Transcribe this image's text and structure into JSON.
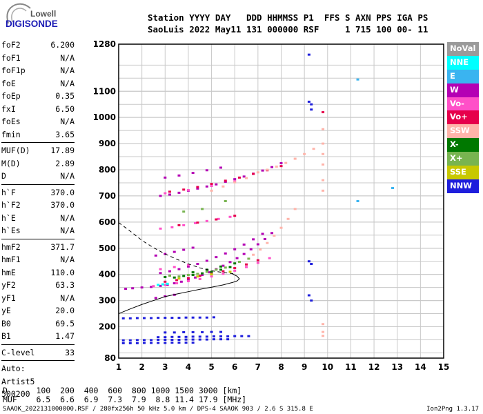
{
  "logo": {
    "line1": "Lowell",
    "line2": "DIGISONDE"
  },
  "header": {
    "line1": "Station YYYY DAY   DDD HHMMSS P1  FFS S AXN PPS IGA PS",
    "line2": "SaoLuis 2022 May11 131 000000 RSF     1 715 100 00- 11"
  },
  "params": {
    "groups": [
      [
        {
          "name": "foF2",
          "value": "6.200"
        },
        {
          "name": "foF1",
          "value": "N/A"
        },
        {
          "name": "foF1p",
          "value": "N/A"
        },
        {
          "name": "foE",
          "value": "N/A"
        },
        {
          "name": "foEp",
          "value": "0.35"
        },
        {
          "name": "fxI",
          "value": "6.50"
        },
        {
          "name": "foEs",
          "value": "N/A"
        },
        {
          "name": "fmin",
          "value": "3.65"
        }
      ],
      [
        {
          "name": "MUF(D)",
          "value": "17.89"
        },
        {
          "name": "M(D)",
          "value": "2.89"
        },
        {
          "name": "D",
          "value": "N/A"
        }
      ],
      [
        {
          "name": "h`F",
          "value": "370.0"
        },
        {
          "name": "h`F2",
          "value": "370.0"
        },
        {
          "name": "h`E",
          "value": "N/A"
        },
        {
          "name": "h`Es",
          "value": "N/A"
        }
      ],
      [
        {
          "name": "hmF2",
          "value": "371.7"
        },
        {
          "name": "hmF1",
          "value": "N/A"
        },
        {
          "name": "hmE",
          "value": "110.0"
        },
        {
          "name": "yF2",
          "value": "63.3"
        },
        {
          "name": "yF1",
          "value": "N/A"
        },
        {
          "name": "yE",
          "value": "20.0"
        },
        {
          "name": "B0",
          "value": "69.5"
        },
        {
          "name": "B1",
          "value": "1.47"
        }
      ],
      [
        {
          "name": "C-level",
          "value": "33"
        }
      ]
    ],
    "auto": [
      "Auto:",
      "Artist5",
      "500200"
    ]
  },
  "legend": [
    {
      "label": "NoVal",
      "color": "#9a9a9a"
    },
    {
      "label": "NNE",
      "color": "#00ffff"
    },
    {
      "label": "E",
      "color": "#3ab4f0"
    },
    {
      "label": "W",
      "color": "#b400b4"
    },
    {
      "label": "Vo-",
      "color": "#ff50c8"
    },
    {
      "label": "Vo+",
      "color": "#e6004b"
    },
    {
      "label": "SSW",
      "color": "#ffb4aa"
    },
    {
      "label": "X-",
      "color": "#007800"
    },
    {
      "label": "X+",
      "color": "#78b450"
    },
    {
      "label": "SSE",
      "color": "#c8c800"
    },
    {
      "label": "NNW",
      "color": "#1e1edc"
    }
  ],
  "muf_table": {
    "d_row": "D      100  200  400  600  800 1000 1500 3000 [km]",
    "muf_row": "MUF    6.5  6.6  6.9  7.3  7.9  8.8 11.4 17.9 [MHz]"
  },
  "footer": "SAAOK_2022131000000.RSF / 280fx256h 50 kHz 5.0 km / DPS-4 SAAOK 903 / 2.6 S 315.8 E",
  "version": "Ion2Png 1.3.17",
  "chart_data": {
    "type": "scatter",
    "xlim": [
      1,
      15
    ],
    "ylim": [
      80,
      1280
    ],
    "x_ticks": [
      1,
      2,
      3,
      4,
      5,
      6,
      7,
      8,
      9,
      10,
      11,
      12,
      13,
      14,
      15
    ],
    "y_ticks": [
      80,
      200,
      300,
      400,
      500,
      600,
      700,
      800,
      900,
      1000,
      1100,
      1280
    ],
    "grid": true,
    "profile_solid": {
      "x": [
        1.0,
        1.5,
        2.0,
        2.5,
        3.0,
        3.5,
        4.0,
        4.5,
        5.0,
        5.5,
        5.9,
        6.1,
        6.2,
        6.1,
        5.9
      ],
      "y": [
        250,
        268,
        285,
        300,
        315,
        325,
        334,
        343,
        351,
        360,
        369,
        375,
        383,
        393,
        402
      ]
    },
    "profile_dashed": {
      "x": [
        1.0,
        1.5,
        2.0,
        2.5,
        3.0,
        3.5,
        4.0,
        4.5,
        5.0,
        5.5,
        6.0
      ],
      "y": [
        598,
        565,
        530,
        502,
        478,
        458,
        440,
        425,
        414,
        407,
        402
      ]
    },
    "series": [
      {
        "legend": "W",
        "x": [
          1.3,
          1.6,
          2.0,
          2.4,
          2.8,
          3.1,
          3.4,
          3.7,
          4.0,
          4.3,
          4.6,
          4.9,
          5.2,
          5.5,
          5.8,
          6.1,
          6.4,
          6.7,
          7.0,
          7.3,
          7.6,
          2.8,
          3.2,
          3.6,
          4.0,
          4.4,
          4.8,
          5.2,
          5.6,
          6.0,
          6.4,
          6.8,
          7.2,
          2.6,
          3.0,
          3.4,
          3.8,
          4.2,
          2.8,
          3.2,
          3.6,
          4.0,
          4.4,
          4.8,
          5.2,
          5.6,
          6.0,
          6.4,
          6.8,
          7.2,
          7.6,
          8.0,
          3.0,
          3.6,
          4.2,
          4.8,
          5.4,
          2.6,
          3.0,
          3.4
        ],
        "y": [
          345,
          347,
          350,
          352,
          356,
          360,
          366,
          372,
          380,
          388,
          398,
          408,
          420,
          433,
          447,
          462,
          478,
          496,
          515,
          535,
          558,
          405,
          412,
          420,
          430,
          440,
          452,
          466,
          480,
          496,
          514,
          534,
          555,
          472,
          478,
          486,
          494,
          502,
          700,
          705,
          712,
          720,
          728,
          736,
          744,
          754,
          764,
          774,
          785,
          797,
          810,
          825,
          770,
          778,
          788,
          798,
          808,
          310,
          316,
          322
        ]
      },
      {
        "legend": "Vo-",
        "x": [
          2.5,
          3.0,
          3.5,
          4.0,
          4.5,
          5.0,
          5.5,
          6.0,
          6.5,
          7.0,
          7.5,
          2.8,
          3.3,
          3.8,
          4.3,
          4.8,
          5.3,
          5.8,
          3.0,
          4.0,
          5.0,
          6.0,
          2.8,
          3.4,
          4.0
        ],
        "y": [
          355,
          360,
          366,
          374,
          382,
          392,
          402,
          414,
          428,
          444,
          462,
          575,
          580,
          588,
          596,
          604,
          612,
          620,
          710,
          722,
          738,
          756,
          420,
          428,
          436
        ]
      },
      {
        "legend": "Vo+",
        "x": [
          3.0,
          3.5,
          4.0,
          4.5,
          5.0,
          5.5,
          6.0,
          6.5,
          7.0,
          3.2,
          3.8,
          4.4,
          5.0,
          5.6,
          6.2,
          6.8,
          7.4,
          8.0,
          3.6,
          4.4,
          5.2,
          6.0,
          9.8
        ],
        "y": [
          372,
          378,
          386,
          394,
          402,
          412,
          424,
          438,
          454,
          716,
          724,
          734,
          746,
          758,
          770,
          784,
          798,
          814,
          588,
          598,
          610,
          624,
          1020
        ]
      },
      {
        "legend": "SSW",
        "x": [
          6.8,
          7.1,
          7.4,
          7.7,
          8.0,
          8.3,
          8.6,
          7.0,
          7.4,
          7.8,
          8.2,
          8.6,
          9.0,
          9.4,
          5.0,
          5.5,
          6.0,
          6.5,
          9.8,
          9.8,
          9.8,
          9.8,
          9.8,
          9.8,
          9.8,
          9.8,
          9.8
        ],
        "y": [
          475,
          495,
          520,
          548,
          578,
          612,
          650,
          790,
          800,
          812,
          826,
          842,
          860,
          880,
          720,
          736,
          752,
          768,
          955,
          900,
          860,
          820,
          760,
          720,
          210,
          180,
          165
        ]
      },
      {
        "legend": "X-",
        "x": [
          3.0,
          3.4,
          3.8,
          4.2,
          4.6,
          5.0,
          5.4,
          5.8,
          4.2,
          4.8,
          5.4,
          6.0
        ],
        "y": [
          390,
          388,
          394,
          398,
          404,
          410,
          418,
          428,
          408,
          418,
          430,
          442
        ]
      },
      {
        "legend": "X+",
        "x": [
          3.2,
          3.6,
          4.0,
          4.4,
          4.8,
          5.2,
          5.6,
          6.2,
          6.6,
          3.8,
          4.6,
          5.6
        ],
        "y": [
          395,
          392,
          398,
          402,
          410,
          418,
          426,
          448,
          460,
          640,
          650,
          680
        ]
      },
      {
        "legend": "SSE",
        "x": [
          3.6,
          4.4,
          5.0,
          5.8
        ],
        "y": [
          384,
          392,
          400,
          410
        ]
      },
      {
        "legend": "NNW",
        "x": [
          1.2,
          1.5,
          1.8,
          2.1,
          2.4,
          2.7,
          3.0,
          3.3,
          3.6,
          3.9,
          4.2,
          4.5,
          4.8,
          5.1,
          1.2,
          1.5,
          1.8,
          2.1,
          2.4,
          2.7,
          3.0,
          3.3,
          3.6,
          3.9,
          4.2,
          4.5,
          4.8,
          5.1,
          5.4,
          5.7,
          2.7,
          3.0,
          3.3,
          3.6,
          3.9,
          4.2,
          4.5,
          4.8,
          5.1,
          5.4,
          5.7,
          6.0,
          6.3,
          6.6,
          3.0,
          3.4,
          3.8,
          4.2,
          4.6,
          5.0,
          5.4,
          1.2,
          1.5,
          1.8,
          2.1,
          2.4,
          2.7,
          3.0,
          3.3,
          3.6,
          3.9,
          4.2,
          9.2,
          9.3,
          9.2,
          9.3,
          9.2,
          9.3,
          9.2,
          9.3
        ],
        "y": [
          232,
          232,
          233,
          233,
          233,
          234,
          234,
          234,
          234,
          235,
          235,
          235,
          235,
          236,
          148,
          148,
          149,
          149,
          149,
          150,
          150,
          150,
          150,
          151,
          151,
          151,
          151,
          152,
          152,
          152,
          160,
          160,
          161,
          161,
          161,
          162,
          162,
          162,
          163,
          163,
          163,
          164,
          164,
          164,
          178,
          178,
          179,
          179,
          179,
          180,
          180,
          137,
          137,
          137,
          138,
          138,
          138,
          138,
          139,
          139,
          139,
          139,
          1060,
          1050,
          1240,
          1030,
          450,
          440,
          320,
          300
        ]
      },
      {
        "legend": "E",
        "x": [
          11.3,
          12.8,
          11.3
        ],
        "y": [
          1145,
          730,
          680
        ]
      },
      {
        "legend": "NNE",
        "x": [
          2.7,
          2.9,
          3.1
        ],
        "y": [
          360,
          362,
          364
        ]
      }
    ]
  }
}
